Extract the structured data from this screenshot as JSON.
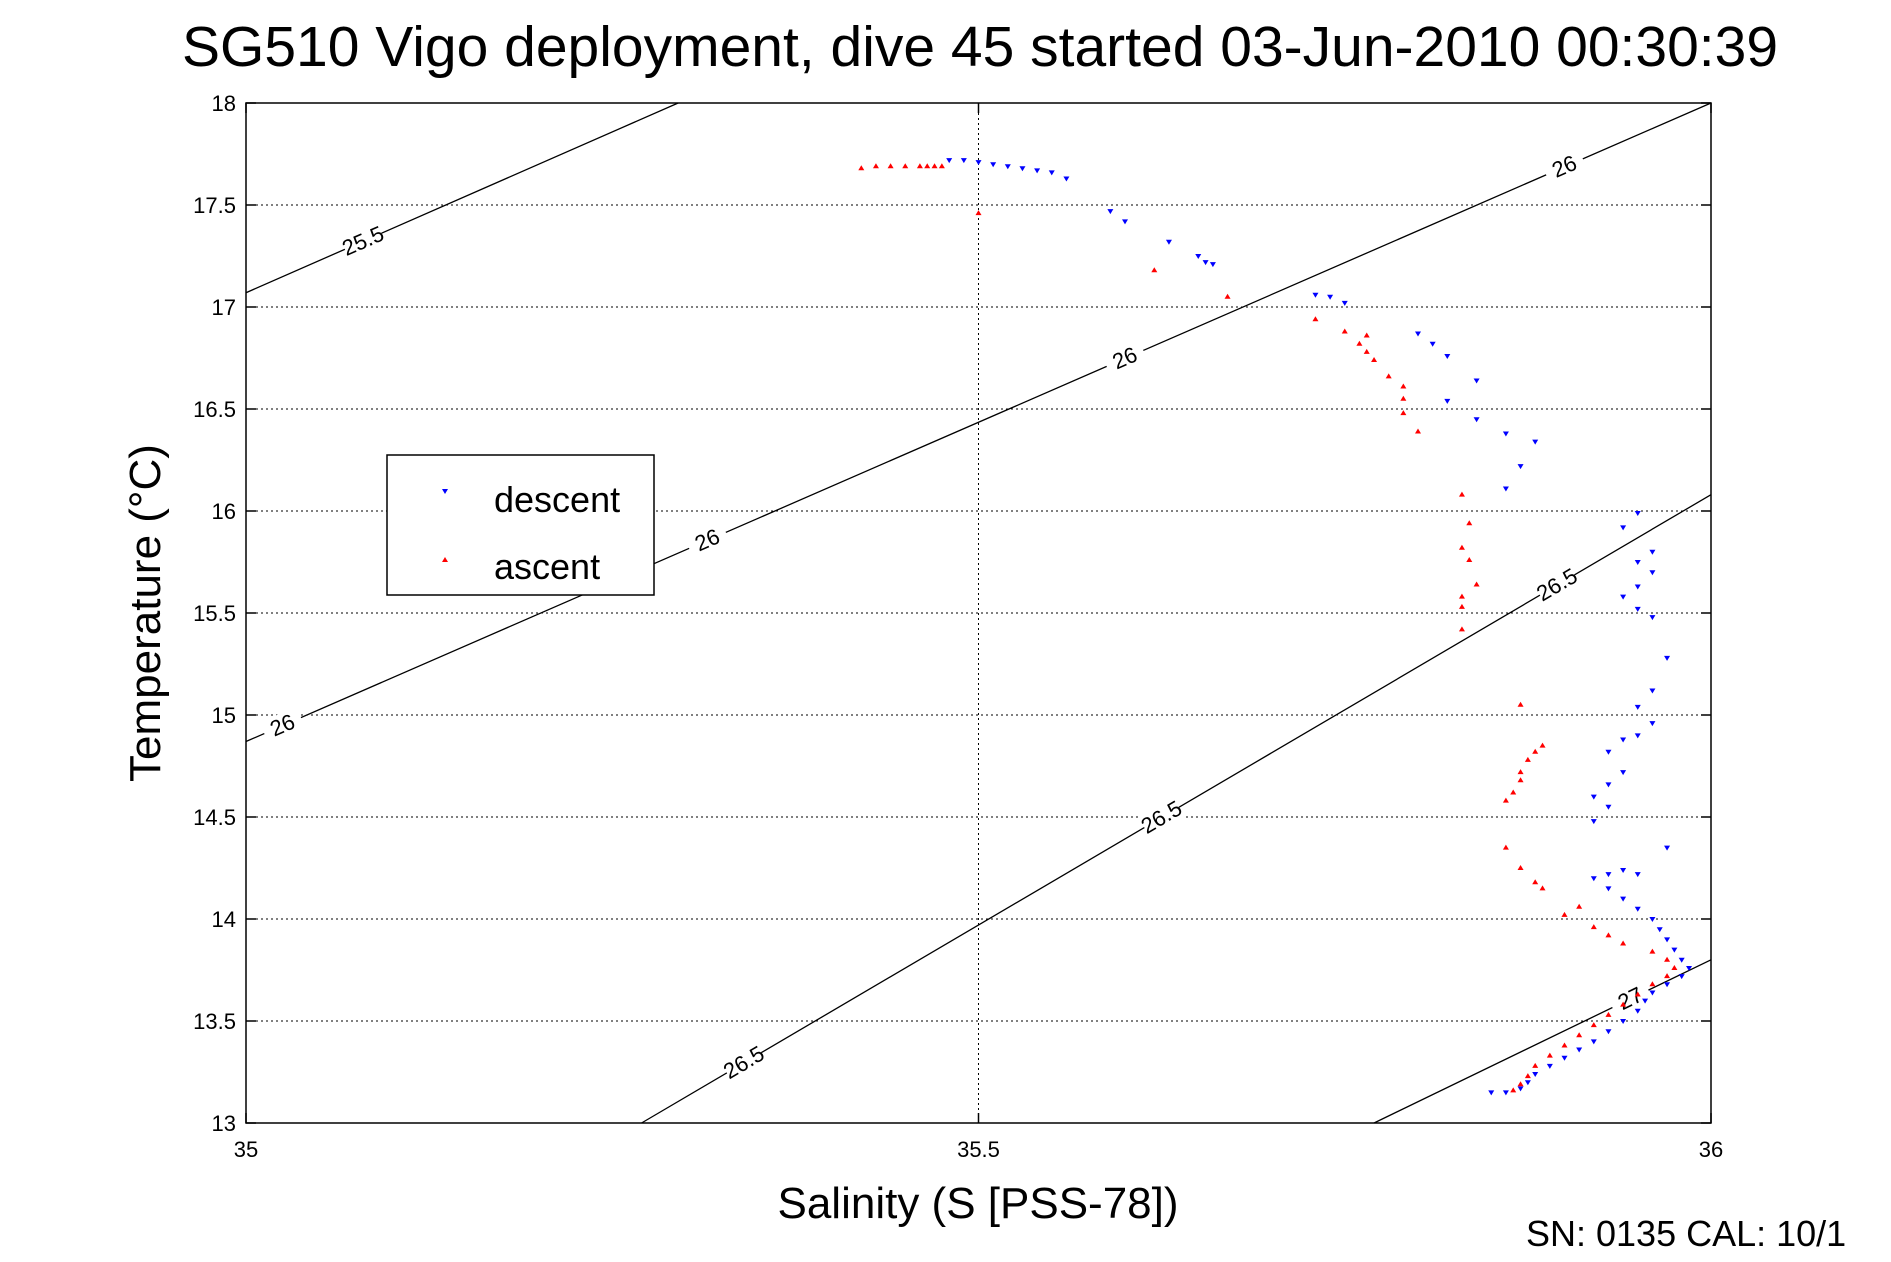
{
  "chart_data": {
    "type": "scatter",
    "title": "SG510 Vigo deployment, dive 45 started 03-Jun-2010 00:30:39",
    "xlabel": "Salinity (S [PSS-78])",
    "ylabel": "Temperature (°C)",
    "xlim": [
      35,
      36
    ],
    "ylim": [
      13,
      18
    ],
    "x_ticks": [
      "35",
      "35.5",
      "36"
    ],
    "y_ticks": [
      "13",
      "13.5",
      "14",
      "14.5",
      "15",
      "15.5",
      "16",
      "16.5",
      "17",
      "17.5",
      "18"
    ],
    "x_tick_values": [
      35,
      35.5,
      36
    ],
    "y_tick_values": [
      13,
      13.5,
      14,
      14.5,
      15,
      15.5,
      16,
      16.5,
      17,
      17.5,
      18
    ],
    "grid": true,
    "legend_position": "left",
    "colors": {
      "descent": "#0000ff",
      "ascent": "#ff0000",
      "contour": "#000000"
    },
    "series": [
      {
        "name": "descent",
        "marker": "triangle-down",
        "color": "#0000ff",
        "points": [
          [
            35.48,
            17.72
          ],
          [
            35.49,
            17.72
          ],
          [
            35.5,
            17.71
          ],
          [
            35.51,
            17.7
          ],
          [
            35.52,
            17.69
          ],
          [
            35.53,
            17.68
          ],
          [
            35.54,
            17.67
          ],
          [
            35.55,
            17.66
          ],
          [
            35.56,
            17.63
          ],
          [
            35.59,
            17.47
          ],
          [
            35.6,
            17.42
          ],
          [
            35.63,
            17.32
          ],
          [
            35.65,
            17.25
          ],
          [
            35.655,
            17.22
          ],
          [
            35.66,
            17.21
          ],
          [
            35.73,
            17.06
          ],
          [
            35.74,
            17.05
          ],
          [
            35.75,
            17.02
          ],
          [
            35.8,
            16.87
          ],
          [
            35.81,
            16.82
          ],
          [
            35.82,
            16.76
          ],
          [
            35.84,
            16.64
          ],
          [
            35.82,
            16.54
          ],
          [
            35.84,
            16.45
          ],
          [
            35.86,
            16.38
          ],
          [
            35.88,
            16.34
          ],
          [
            35.87,
            16.22
          ],
          [
            35.86,
            16.11
          ],
          [
            35.95,
            15.99
          ],
          [
            35.94,
            15.92
          ],
          [
            35.96,
            15.8
          ],
          [
            35.95,
            15.75
          ],
          [
            35.96,
            15.7
          ],
          [
            35.95,
            15.63
          ],
          [
            35.94,
            15.58
          ],
          [
            35.95,
            15.52
          ],
          [
            35.96,
            15.48
          ],
          [
            35.97,
            15.28
          ],
          [
            35.96,
            15.12
          ],
          [
            35.95,
            15.04
          ],
          [
            35.96,
            14.96
          ],
          [
            35.95,
            14.9
          ],
          [
            35.94,
            14.88
          ],
          [
            35.93,
            14.82
          ],
          [
            35.94,
            14.72
          ],
          [
            35.93,
            14.66
          ],
          [
            35.92,
            14.6
          ],
          [
            35.93,
            14.55
          ],
          [
            35.92,
            14.48
          ],
          [
            35.97,
            14.35
          ],
          [
            35.94,
            14.24
          ],
          [
            35.95,
            14.22
          ],
          [
            35.93,
            14.22
          ],
          [
            35.92,
            14.2
          ],
          [
            35.93,
            14.15
          ],
          [
            35.94,
            14.1
          ],
          [
            35.95,
            14.05
          ],
          [
            35.96,
            14.0
          ],
          [
            35.965,
            13.95
          ],
          [
            35.97,
            13.9
          ],
          [
            35.975,
            13.85
          ],
          [
            35.98,
            13.8
          ],
          [
            35.985,
            13.76
          ],
          [
            35.98,
            13.72
          ],
          [
            35.97,
            13.68
          ],
          [
            35.96,
            13.64
          ],
          [
            35.955,
            13.6
          ],
          [
            35.95,
            13.55
          ],
          [
            35.94,
            13.5
          ],
          [
            35.93,
            13.45
          ],
          [
            35.92,
            13.4
          ],
          [
            35.91,
            13.36
          ],
          [
            35.9,
            13.32
          ],
          [
            35.89,
            13.28
          ],
          [
            35.88,
            13.24
          ],
          [
            35.875,
            13.2
          ],
          [
            35.87,
            13.17
          ],
          [
            35.86,
            13.15
          ],
          [
            35.85,
            13.15
          ]
        ]
      },
      {
        "name": "ascent",
        "marker": "triangle-up",
        "color": "#ff0000",
        "points": [
          [
            35.42,
            17.68
          ],
          [
            35.43,
            17.69
          ],
          [
            35.44,
            17.69
          ],
          [
            35.45,
            17.69
          ],
          [
            35.46,
            17.69
          ],
          [
            35.465,
            17.69
          ],
          [
            35.47,
            17.69
          ],
          [
            35.475,
            17.69
          ],
          [
            35.5,
            17.46
          ],
          [
            35.62,
            17.18
          ],
          [
            35.67,
            17.05
          ],
          [
            35.73,
            16.94
          ],
          [
            35.75,
            16.88
          ],
          [
            35.765,
            16.86
          ],
          [
            35.76,
            16.82
          ],
          [
            35.765,
            16.78
          ],
          [
            35.77,
            16.74
          ],
          [
            35.78,
            16.66
          ],
          [
            35.79,
            16.61
          ],
          [
            35.79,
            16.55
          ],
          [
            35.79,
            16.48
          ],
          [
            35.8,
            16.39
          ],
          [
            35.83,
            16.08
          ],
          [
            35.835,
            15.94
          ],
          [
            35.83,
            15.82
          ],
          [
            35.835,
            15.76
          ],
          [
            35.84,
            15.64
          ],
          [
            35.83,
            15.58
          ],
          [
            35.83,
            15.53
          ],
          [
            35.83,
            15.42
          ],
          [
            35.87,
            15.05
          ],
          [
            35.885,
            14.85
          ],
          [
            35.88,
            14.82
          ],
          [
            35.875,
            14.78
          ],
          [
            35.87,
            14.72
          ],
          [
            35.87,
            14.68
          ],
          [
            35.865,
            14.62
          ],
          [
            35.86,
            14.58
          ],
          [
            35.86,
            14.35
          ],
          [
            35.87,
            14.25
          ],
          [
            35.88,
            14.18
          ],
          [
            35.885,
            14.15
          ],
          [
            35.9,
            14.02
          ],
          [
            35.91,
            14.06
          ],
          [
            35.92,
            13.96
          ],
          [
            35.93,
            13.92
          ],
          [
            35.94,
            13.88
          ],
          [
            35.96,
            13.84
          ],
          [
            35.97,
            13.8
          ],
          [
            35.975,
            13.76
          ],
          [
            35.97,
            13.72
          ],
          [
            35.96,
            13.68
          ],
          [
            35.95,
            13.63
          ],
          [
            35.94,
            13.58
          ],
          [
            35.93,
            13.53
          ],
          [
            35.92,
            13.48
          ],
          [
            35.91,
            13.43
          ],
          [
            35.9,
            13.38
          ],
          [
            35.89,
            13.33
          ],
          [
            35.88,
            13.28
          ],
          [
            35.875,
            13.23
          ],
          [
            35.87,
            13.19
          ],
          [
            35.865,
            13.16
          ]
        ]
      }
    ],
    "contours": [
      {
        "label": "25.5",
        "points": [
          [
            35,
            17.07
          ],
          [
            35.295,
            18
          ]
        ],
        "label_at": [
          0.08,
          17.32
        ]
      },
      {
        "label": "26",
        "points": [
          [
            35,
            14.87
          ],
          [
            36,
            18
          ]
        ],
        "label_at": [
          0.025,
          14.95
        ]
      },
      {
        "label": "26",
        "points": [
          [
            35,
            14.87
          ],
          [
            36,
            18
          ]
        ],
        "label_at": [
          0.315,
          15.94
        ]
      },
      {
        "label": "26",
        "points": [
          [
            35,
            14.87
          ],
          [
            36,
            18
          ]
        ],
        "label_at": [
          0.6,
          16.9
        ]
      },
      {
        "label": "26",
        "points": [
          [
            35,
            14.87
          ],
          [
            36,
            18
          ]
        ],
        "label_at": [
          0.9,
          17.87
        ]
      }
    ],
    "contour_labels": [
      "25.5",
      "26",
      "26",
      "26",
      "26",
      "26.5",
      "26.5",
      "26.5",
      "27"
    ],
    "legend_entries": [
      "descent",
      "ascent"
    ],
    "footer": "SN: 0135  CAL: 10/1"
  }
}
